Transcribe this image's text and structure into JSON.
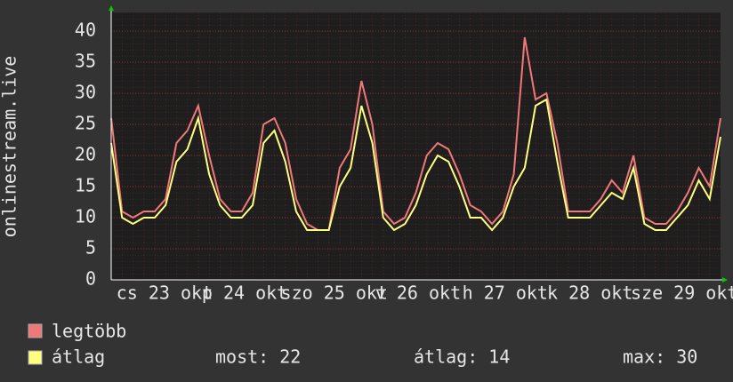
{
  "chart_data": {
    "type": "line",
    "y_label": "onlinestream.live",
    "x": [
      0,
      3,
      6,
      9,
      12,
      15,
      18,
      21,
      24,
      27,
      30,
      33,
      36,
      39,
      42,
      45,
      48,
      51,
      54,
      57,
      60,
      63,
      66,
      69,
      72,
      75,
      78,
      81,
      84,
      87,
      90,
      93,
      96,
      99,
      102,
      105,
      108,
      111,
      114,
      117,
      120,
      123,
      126,
      129,
      132,
      135,
      138,
      141,
      144,
      147,
      150,
      153,
      156,
      159,
      162,
      165,
      168
    ],
    "series": [
      {
        "name": "legtöbb",
        "color": "#f07878",
        "values": [
          26,
          11,
          10,
          11,
          11,
          13,
          22,
          24,
          28,
          20,
          13,
          11,
          11,
          14,
          25,
          26,
          22,
          13,
          9,
          8,
          8,
          18,
          21,
          32,
          25,
          11,
          9,
          10,
          14,
          20,
          22,
          21,
          17,
          12,
          11,
          9,
          11,
          17,
          39,
          29,
          30,
          22,
          11,
          11,
          11,
          13,
          16,
          14,
          20,
          10,
          9,
          9,
          11,
          14,
          18,
          15,
          26
        ]
      },
      {
        "name": "átlag",
        "color": "#ffff80",
        "values": [
          22,
          10,
          9,
          10,
          10,
          12,
          19,
          21,
          26,
          17,
          12,
          10,
          10,
          12,
          22,
          24,
          19,
          11,
          8,
          8,
          8,
          15,
          18,
          28,
          22,
          10,
          8,
          9,
          12,
          17,
          20,
          19,
          15,
          10,
          10,
          8,
          10,
          15,
          18,
          28,
          29,
          19,
          10,
          10,
          10,
          12,
          14,
          13,
          18,
          9,
          8,
          8,
          10,
          12,
          16,
          13,
          23
        ]
      }
    ],
    "xlim": [
      0,
      168
    ],
    "xticks": [
      {
        "value": 14.7,
        "label": "cs 23 okt"
      },
      {
        "value": 36.8,
        "label": "p 24 okt"
      },
      {
        "value": 61.5,
        "label": "szo 25 okt"
      },
      {
        "value": 84.6,
        "label": "v 26 okt"
      },
      {
        "value": 108.6,
        "label": "h 27 okt"
      },
      {
        "value": 132,
        "label": "k 28 okt"
      },
      {
        "value": 158,
        "label": "sze 29 okt"
      }
    ],
    "ylim": [
      0,
      43
    ],
    "yticks": [
      0,
      5,
      10,
      15,
      20,
      25,
      30,
      35,
      40
    ],
    "grid": true,
    "legend_stats": [
      "most: 22",
      "átlag: 14",
      "max: 30"
    ]
  }
}
